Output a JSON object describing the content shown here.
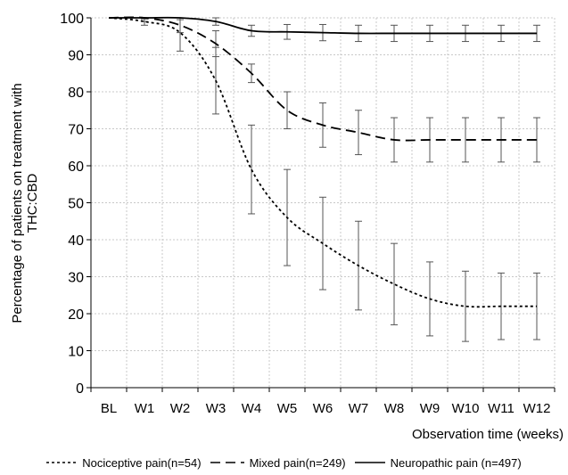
{
  "chart_data": {
    "type": "line",
    "ylabel_lines": [
      "Percentage of patients on treatment with",
      "THC:CBD"
    ],
    "xlabel": "Observation time (weeks)",
    "categories": [
      "BL",
      "W1",
      "W2",
      "W3",
      "W4",
      "W5",
      "W6",
      "W7",
      "W8",
      "W9",
      "W10",
      "W11",
      "W12"
    ],
    "ylim": [
      0,
      100
    ],
    "yticks": [
      0,
      10,
      20,
      30,
      40,
      50,
      60,
      70,
      80,
      90,
      100
    ],
    "grid": true,
    "legend_position": "bottom",
    "series": [
      {
        "name": "Nociceptive pain(n=54)",
        "style": "dotted",
        "values": [
          100,
          99,
          96,
          83,
          59,
          46,
          39,
          33,
          28,
          24,
          22,
          22,
          22
        ],
        "err": [
          0,
          1,
          5,
          9,
          12,
          13,
          12.5,
          12,
          11,
          10,
          9.5,
          9,
          9
        ]
      },
      {
        "name": "Mixed pain(n=249)",
        "style": "dashed",
        "values": [
          100,
          100,
          98,
          93,
          85,
          75,
          71,
          69,
          67,
          67,
          67,
          67,
          67
        ],
        "err": [
          0,
          1,
          2,
          3.5,
          2.5,
          5,
          6,
          6,
          6,
          6,
          6,
          6,
          6
        ]
      },
      {
        "name": "Neuropathic pain (n=497)",
        "style": "solid",
        "values": [
          100,
          100,
          100,
          99,
          96.5,
          96.2,
          96,
          95.8,
          95.8,
          95.8,
          95.8,
          95.8,
          95.8
        ],
        "err": [
          0,
          0.3,
          0.5,
          1,
          1.5,
          2,
          2.2,
          2.2,
          2.2,
          2.2,
          2.2,
          2.2,
          2.2
        ]
      }
    ]
  }
}
